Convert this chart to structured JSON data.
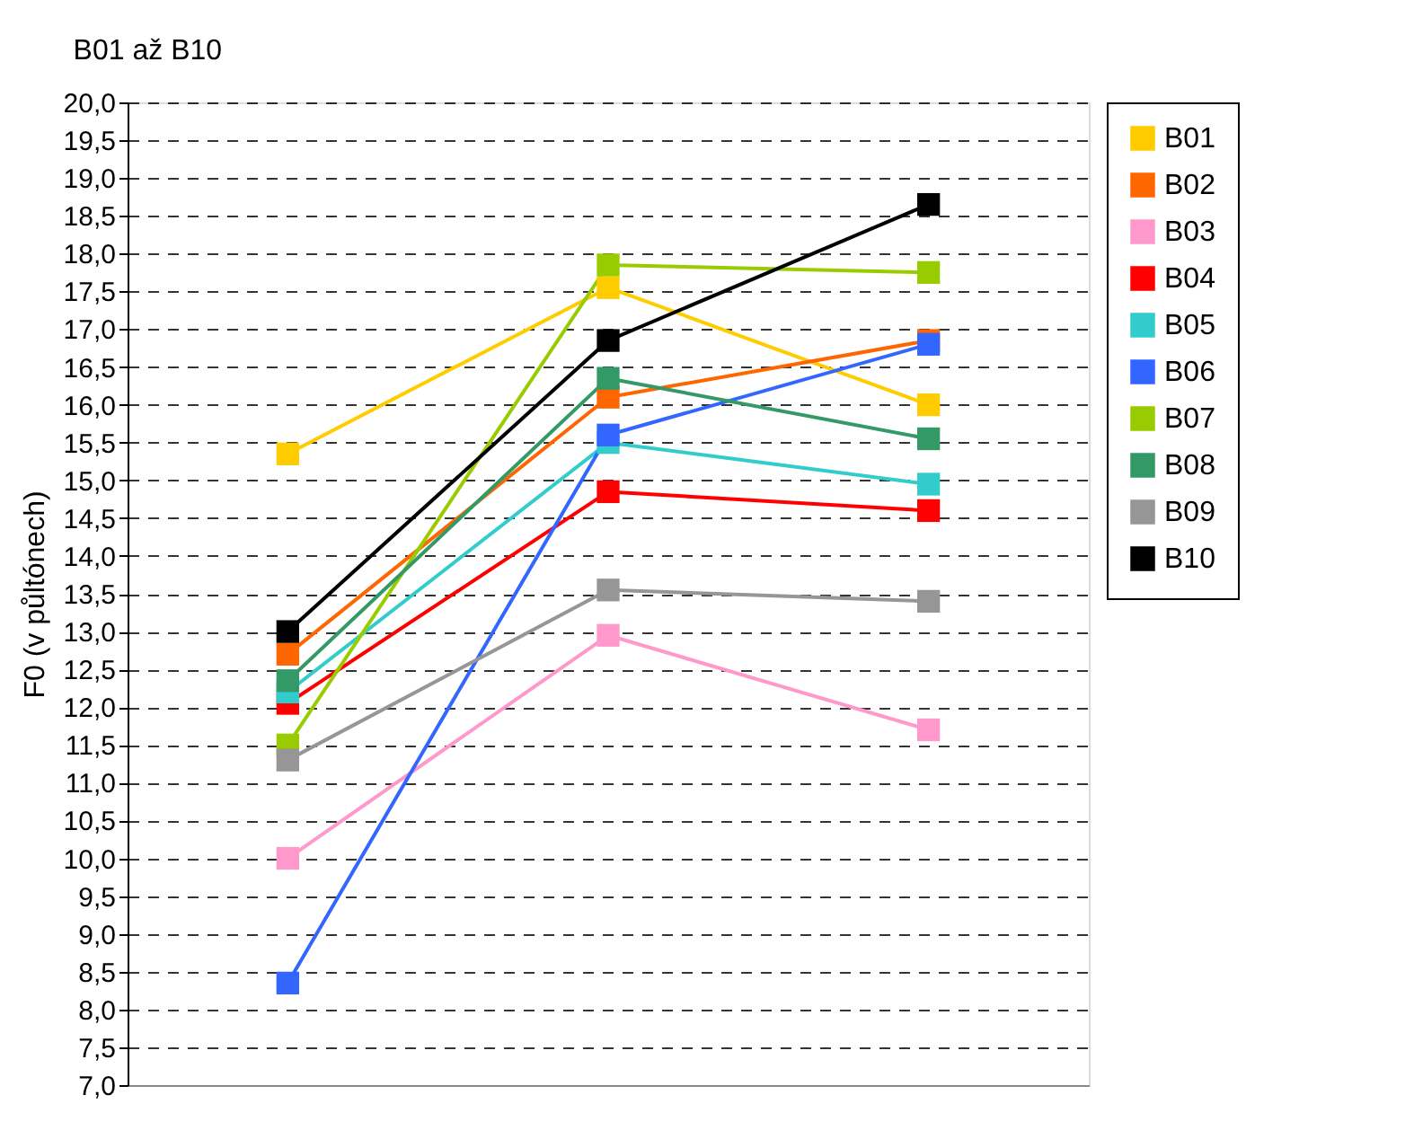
{
  "chart_data": {
    "type": "line",
    "title": "B01 až B10",
    "ylabel": "F0 (v půltónech)",
    "categories": [
      null,
      null,
      null
    ],
    "series": [
      {
        "name": "B01",
        "color": "#ffcc00",
        "values": [
          15.35,
          17.55,
          16.0
        ]
      },
      {
        "name": "B02",
        "color": "#ff6600",
        "values": [
          12.7,
          16.1,
          16.85
        ]
      },
      {
        "name": "B03",
        "color": "#ff99cc",
        "values": [
          10.0,
          12.95,
          11.7
        ]
      },
      {
        "name": "B04",
        "color": "#ff0000",
        "values": [
          12.05,
          14.85,
          14.6
        ]
      },
      {
        "name": "B05",
        "color": "#33cccc",
        "values": [
          12.2,
          15.5,
          14.95
        ]
      },
      {
        "name": "B06",
        "color": "#3366ff",
        "values": [
          8.35,
          15.6,
          16.8
        ]
      },
      {
        "name": "B07",
        "color": "#99cc00",
        "values": [
          11.5,
          17.85,
          17.75
        ]
      },
      {
        "name": "B08",
        "color": "#339966",
        "values": [
          12.35,
          16.35,
          15.55
        ]
      },
      {
        "name": "B09",
        "color": "#969696",
        "values": [
          11.3,
          13.55,
          13.4
        ]
      },
      {
        "name": "B10",
        "color": "#000000",
        "values": [
          13.0,
          16.85,
          18.65
        ]
      }
    ],
    "ylim": [
      7,
      20
    ],
    "yticks": [
      {
        "value": 7,
        "label": "7,0"
      },
      {
        "value": 7.5,
        "label": "7,5"
      },
      {
        "value": 8,
        "label": "8,0"
      },
      {
        "value": 8.5,
        "label": "8,5"
      },
      {
        "value": 9,
        "label": "9,0"
      },
      {
        "value": 9.5,
        "label": "9,5"
      },
      {
        "value": 10,
        "label": "10,0"
      },
      {
        "value": 10.5,
        "label": "10,5"
      },
      {
        "value": 11,
        "label": "11,0"
      },
      {
        "value": 11.5,
        "label": "11,5"
      },
      {
        "value": 12,
        "label": "12,0"
      },
      {
        "value": 12.5,
        "label": "12,5"
      },
      {
        "value": 13,
        "label": "13,0"
      },
      {
        "value": 13.5,
        "label": "13,5"
      },
      {
        "value": 14,
        "label": "14,0"
      },
      {
        "value": 14.5,
        "label": "14,5"
      },
      {
        "value": 15,
        "label": "15,0"
      },
      {
        "value": 15.5,
        "label": "15,5"
      },
      {
        "value": 16,
        "label": "16,0"
      },
      {
        "value": 16.5,
        "label": "16,5"
      },
      {
        "value": 17,
        "label": "17,0"
      },
      {
        "value": 17.5,
        "label": "17,5"
      },
      {
        "value": 18,
        "label": "18,0"
      },
      {
        "value": 18.5,
        "label": "18,5"
      },
      {
        "value": 19,
        "label": "19,0"
      },
      {
        "value": 19.5,
        "label": "19,5"
      },
      {
        "value": 20,
        "label": "20,0"
      }
    ],
    "grid": "y",
    "legend": "right",
    "marker": "square",
    "line_style": "solid",
    "tick_labels": "y"
  }
}
